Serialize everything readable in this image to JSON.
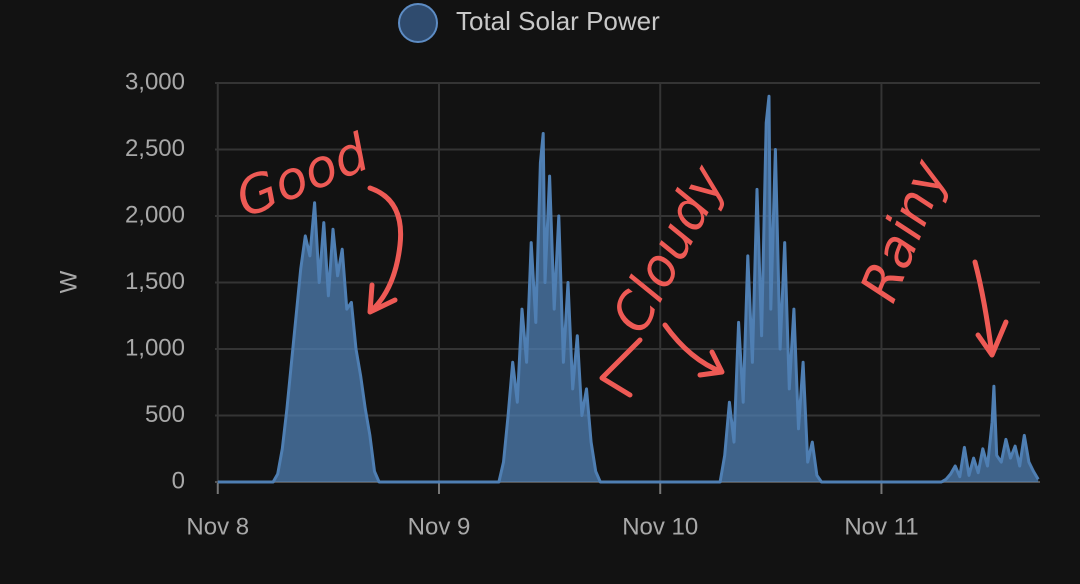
{
  "chart_data": {
    "type": "area",
    "legend": "Total Solar Power",
    "y_label": "W",
    "color": "#4f7fb3",
    "grid": true,
    "annotations": [
      "Good",
      "Cloudy",
      "Rainy"
    ],
    "xlim": [
      -0.3,
      89.2
    ],
    "xticks": [
      {
        "value": 0,
        "label": "Nov 8"
      },
      {
        "value": 24,
        "label": "Nov 9"
      },
      {
        "value": 48,
        "label": "Nov 10"
      },
      {
        "value": 72,
        "label": "Nov 11"
      }
    ],
    "ylim": [
      0,
      3000
    ],
    "yticks": [
      0,
      500,
      {
        "value": 1000,
        "label": "1,000"
      },
      {
        "value": 1500,
        "label": "1,500"
      },
      {
        "value": 2000,
        "label": "2,000"
      },
      {
        "value": 2500,
        "label": "2,500"
      },
      {
        "value": 3000,
        "label": "3,000"
      }
    ],
    "x": [
      0,
      6,
      6.5,
      7,
      7.5,
      8,
      8.5,
      9,
      9.5,
      10,
      10.5,
      11,
      11.5,
      12,
      12.5,
      13,
      13.5,
      14,
      14.5,
      15,
      15.5,
      16,
      16.5,
      17,
      17.5,
      30.5,
      31,
      31.5,
      32,
      32.5,
      33,
      33.5,
      34,
      34.5,
      35,
      35.3,
      35.5,
      36,
      36.5,
      37,
      37.5,
      38,
      38.5,
      39,
      39.5,
      40,
      40.5,
      41,
      41.5,
      54.5,
      55,
      55.5,
      56,
      56.5,
      57,
      57.5,
      58,
      58.5,
      59,
      59.5,
      59.8,
      60,
      60.5,
      61,
      61.5,
      62,
      62.5,
      63,
      63.5,
      64,
      64.5,
      65,
      65.5,
      78.5,
      79,
      79.5,
      80,
      80.5,
      81,
      81.5,
      82,
      82.5,
      83,
      83.5,
      84,
      84.2,
      84.5,
      85,
      85.5,
      86,
      86.5,
      87,
      87.5,
      88,
      88.5,
      89
    ],
    "values": [
      0,
      0,
      60,
      250,
      550,
      900,
      1250,
      1600,
      1850,
      1700,
      2100,
      1500,
      1950,
      1400,
      1900,
      1550,
      1750,
      1300,
      1350,
      1000,
      800,
      550,
      350,
      80,
      0,
      0,
      150,
      500,
      900,
      600,
      1300,
      900,
      1800,
      1200,
      2400,
      2620,
      1500,
      2300,
      1300,
      2000,
      900,
      1500,
      700,
      1100,
      500,
      700,
      300,
      80,
      0,
      0,
      200,
      600,
      300,
      1200,
      600,
      1700,
      900,
      2200,
      1100,
      2700,
      2900,
      1300,
      2500,
      1000,
      1800,
      700,
      1300,
      400,
      900,
      150,
      300,
      50,
      0,
      0,
      20,
      60,
      120,
      40,
      260,
      50,
      180,
      70,
      250,
      120,
      450,
      720,
      200,
      150,
      320,
      180,
      270,
      120,
      350,
      150,
      80,
      20
    ]
  }
}
